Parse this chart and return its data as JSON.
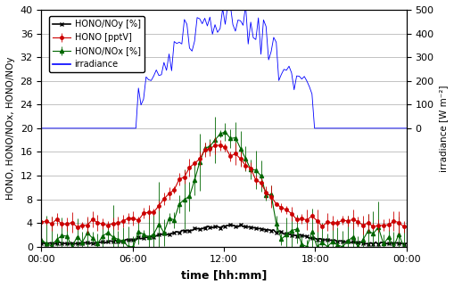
{
  "title": "",
  "xlabel": "time [hh:mm]",
  "ylabel_left": "HONO, HONO/NOx, HONO/NOy",
  "ylabel_right": "irradiance [W m⁻²]",
  "ylim_left": [
    0,
    40
  ],
  "ylim_right": [
    -500,
    500
  ],
  "yticks_left": [
    0,
    4,
    8,
    12,
    16,
    20,
    24,
    28,
    32,
    36,
    40
  ],
  "yticks_right": [
    0,
    100,
    200,
    300,
    400,
    500
  ],
  "xtick_labels": [
    "00:00",
    "06:00",
    "12:00",
    "18:00",
    "00:00"
  ],
  "legend_labels": [
    "HONO [pptV]",
    "HONO/NOx [%]",
    "HONO/NOy [%]",
    "irradiance"
  ],
  "colors": {
    "hono": "#cc0000",
    "nox": "#006600",
    "noy": "#000000",
    "irradiance": "#0000ff"
  },
  "background_color": "#ffffff",
  "grid_color": "#aaaaaa",
  "n_points": 144
}
